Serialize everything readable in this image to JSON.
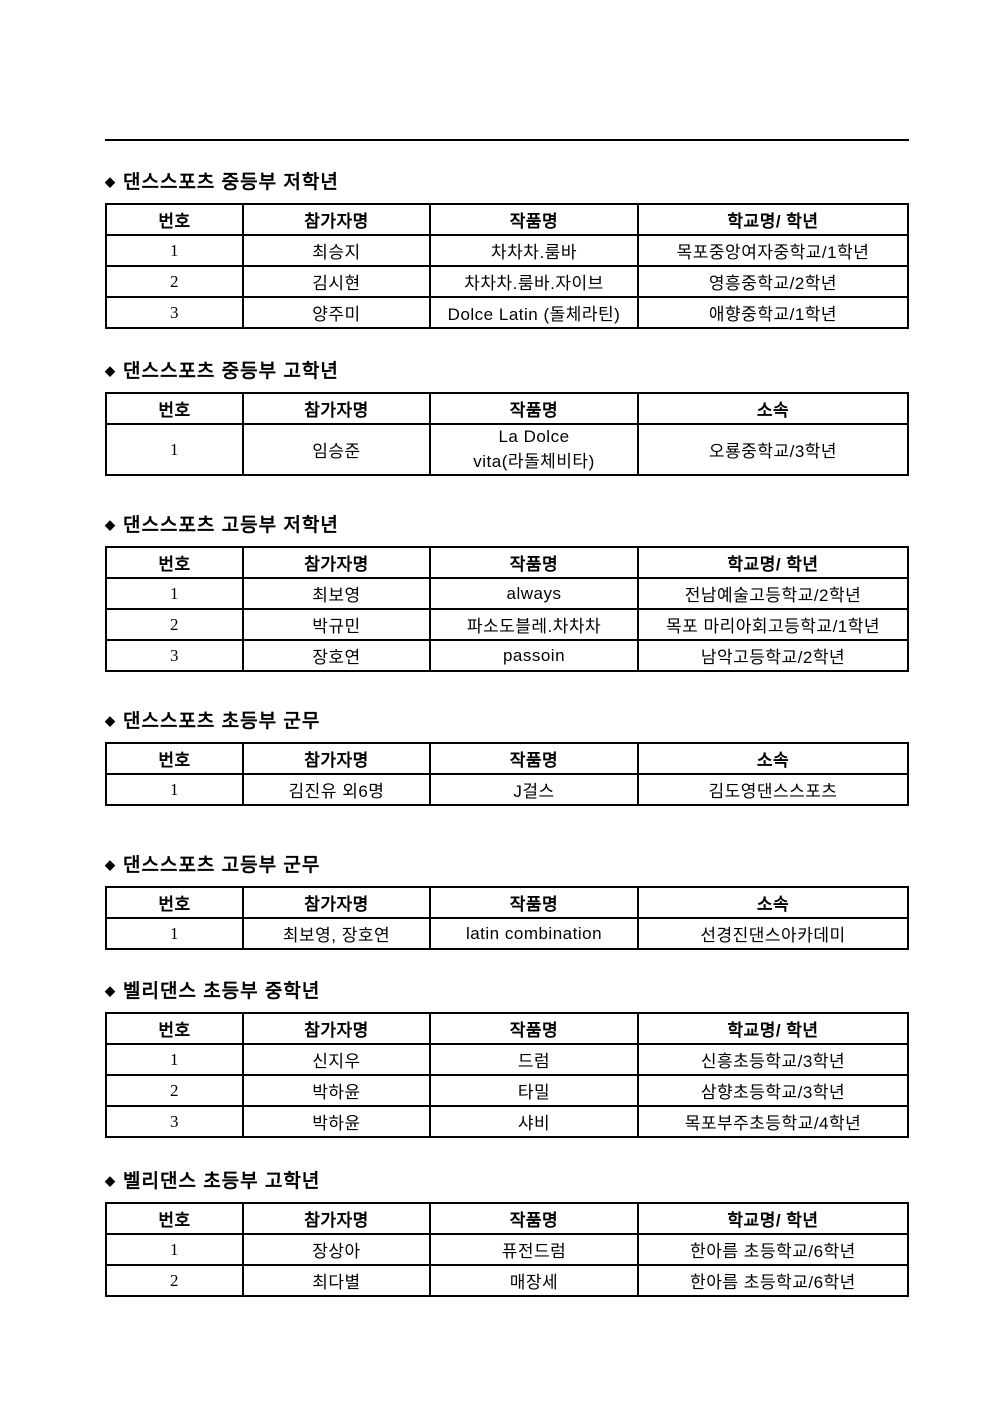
{
  "page": {
    "background": "#ffffff",
    "text_color": "#000000",
    "border_color": "#000000",
    "bullet": "◆"
  },
  "sections": [
    {
      "title": "댄스스포츠 중등부 저학년",
      "columns": [
        "번호",
        "참가자명",
        "작품명",
        "학교명/ 학년"
      ],
      "rows": [
        [
          "1",
          "최승지",
          "차차차.룸바",
          "목포중앙여자중학교/1학년"
        ],
        [
          "2",
          "김시현",
          "차차차.룸바.자이브",
          "영흥중학교/2학년"
        ],
        [
          "3",
          "양주미",
          "Dolce Latin (돌체라틴)",
          "애향중학교/1학년"
        ]
      ]
    },
    {
      "title": "댄스스포츠 중등부 고학년",
      "columns": [
        "번호",
        "참가자명",
        "작품명",
        "소속"
      ],
      "rows": [
        [
          "1",
          "임승준",
          "La Dolce\nvita(라돌체비타)",
          "오룡중학교/3학년"
        ]
      ]
    },
    {
      "title": "댄스스포츠 고등부 저학년",
      "columns": [
        "번호",
        "참가자명",
        "작품명",
        "학교명/ 학년"
      ],
      "rows": [
        [
          "1",
          "최보영",
          "always",
          "전남예술고등학교/2학년"
        ],
        [
          "2",
          "박규민",
          "파소도블레.차차차",
          "목포 마리아회고등학교/1학년"
        ],
        [
          "3",
          "장호연",
          "passoin",
          "남악고등학교/2학년"
        ]
      ]
    },
    {
      "title": "댄스스포츠 초등부 군무",
      "columns": [
        "번호",
        "참가자명",
        "작품명",
        "소속"
      ],
      "rows": [
        [
          "1",
          "김진유 외6명",
          "J걸스",
          "김도영댄스스포츠"
        ]
      ]
    },
    {
      "title": "댄스스포츠 고등부 군무",
      "columns": [
        "번호",
        "참가자명",
        "작품명",
        "소속"
      ],
      "rows": [
        [
          "1",
          "최보영, 장호연",
          "latin combination",
          "선경진댄스아카데미"
        ]
      ]
    },
    {
      "title": "벨리댄스 초등부 중학년",
      "columns": [
        "번호",
        "참가자명",
        "작품명",
        "학교명/ 학년"
      ],
      "rows": [
        [
          "1",
          "신지우",
          "드럼",
          "신흥초등학교/3학년"
        ],
        [
          "2",
          "박하윤",
          "타밀",
          "삼향초등학교/3학년"
        ],
        [
          "3",
          "박하윤",
          "샤비",
          "목포부주초등학교/4학년"
        ]
      ]
    },
    {
      "title": "벨리댄스 초등부 고학년",
      "columns": [
        "번호",
        "참가자명",
        "작품명",
        "학교명/ 학년"
      ],
      "rows": [
        [
          "1",
          "장상아",
          "퓨전드럼",
          "한아름 초등학교/6학년"
        ],
        [
          "2",
          "최다별",
          "매장세",
          "한아름 초등학교/6학년"
        ]
      ]
    }
  ]
}
